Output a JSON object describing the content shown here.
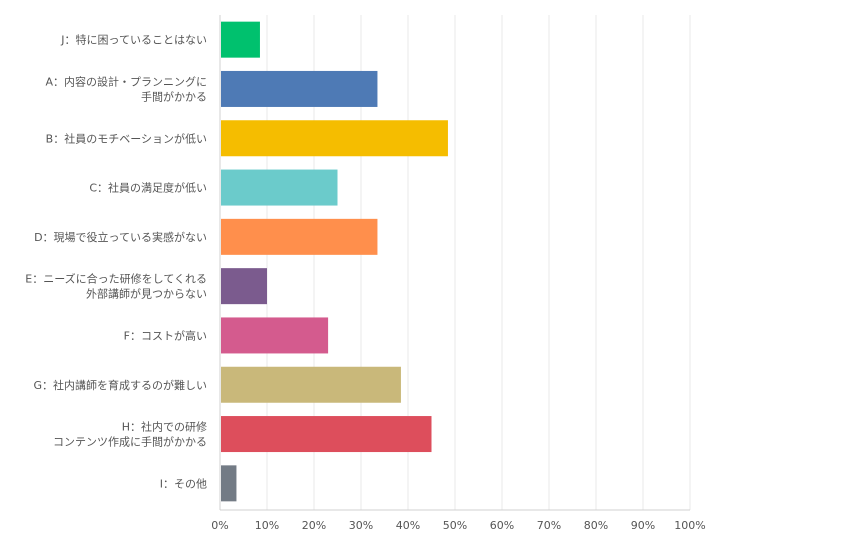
{
  "chart_data": {
    "type": "bar",
    "orientation": "horizontal",
    "title": "",
    "xlabel": "",
    "ylabel": "",
    "xlim": [
      0,
      100
    ],
    "grid": true,
    "legend": "none",
    "x_ticks": [
      "0%",
      "10%",
      "20%",
      "30%",
      "40%",
      "50%",
      "60%",
      "70%",
      "80%",
      "90%",
      "100%"
    ],
    "categories": [
      [
        "J：特に困っていることはない"
      ],
      [
        "A：内容の設計・プランニングに",
        "手間がかかる"
      ],
      [
        "B：社員のモチベーションが低い"
      ],
      [
        "C：社員の満足度が低い"
      ],
      [
        "D：現場で役立っている実感がない"
      ],
      [
        "E：ニーズに合った研修をしてくれる",
        "外部講師が見つからない"
      ],
      [
        "F：コストが高い"
      ],
      [
        "G：社内講師を育成するのが難しい"
      ],
      [
        "H：社内での研修",
        "コンテンツ作成に手間がかかる"
      ],
      [
        "I：その他"
      ]
    ],
    "values": [
      8.5,
      33.5,
      48.5,
      25,
      33.5,
      10,
      23,
      38.5,
      45,
      3.5
    ],
    "colors": [
      "#00c16e",
      "#4e7ab5",
      "#f5bd00",
      "#6bcbcb",
      "#ff8f4c",
      "#7b5b8e",
      "#d45b8e",
      "#c9b87a",
      "#dd4e5c",
      "#737b85"
    ]
  }
}
